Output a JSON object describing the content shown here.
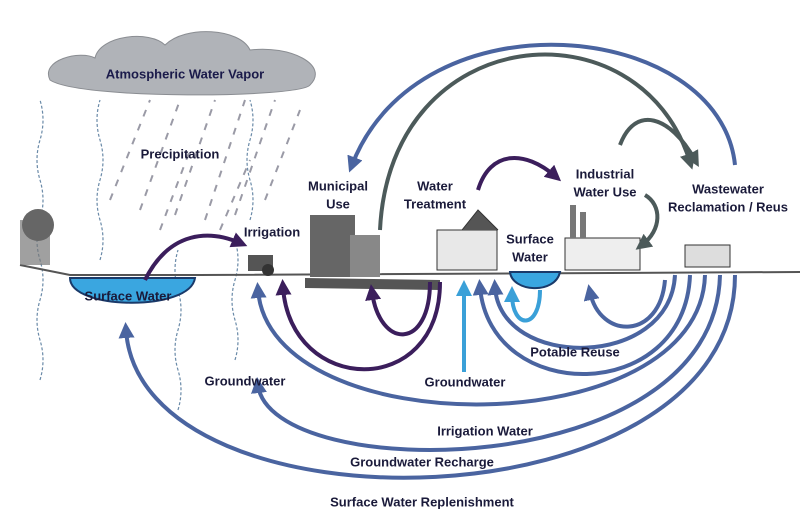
{
  "labels": [
    [
      "Atmospheric Water Vapor"
    ],
    [
      "Precipitation"
    ],
    [
      "Municipal",
      "Use"
    ],
    [
      "Water",
      "Treatment"
    ],
    [
      "Irrigation"
    ],
    [
      "Surface Water"
    ],
    [
      "Surface",
      "Water"
    ],
    [
      "Industrial",
      "Water Use"
    ],
    [
      "Wastewater",
      "Reclamation / Reus"
    ],
    [
      "Groundwater"
    ],
    [
      "Groundwater"
    ],
    [
      "Potable Reuse"
    ],
    [
      "Irrigation Water"
    ],
    [
      "Groundwater Recharge"
    ],
    [
      "Surface Water Replenishment"
    ]
  ]
}
